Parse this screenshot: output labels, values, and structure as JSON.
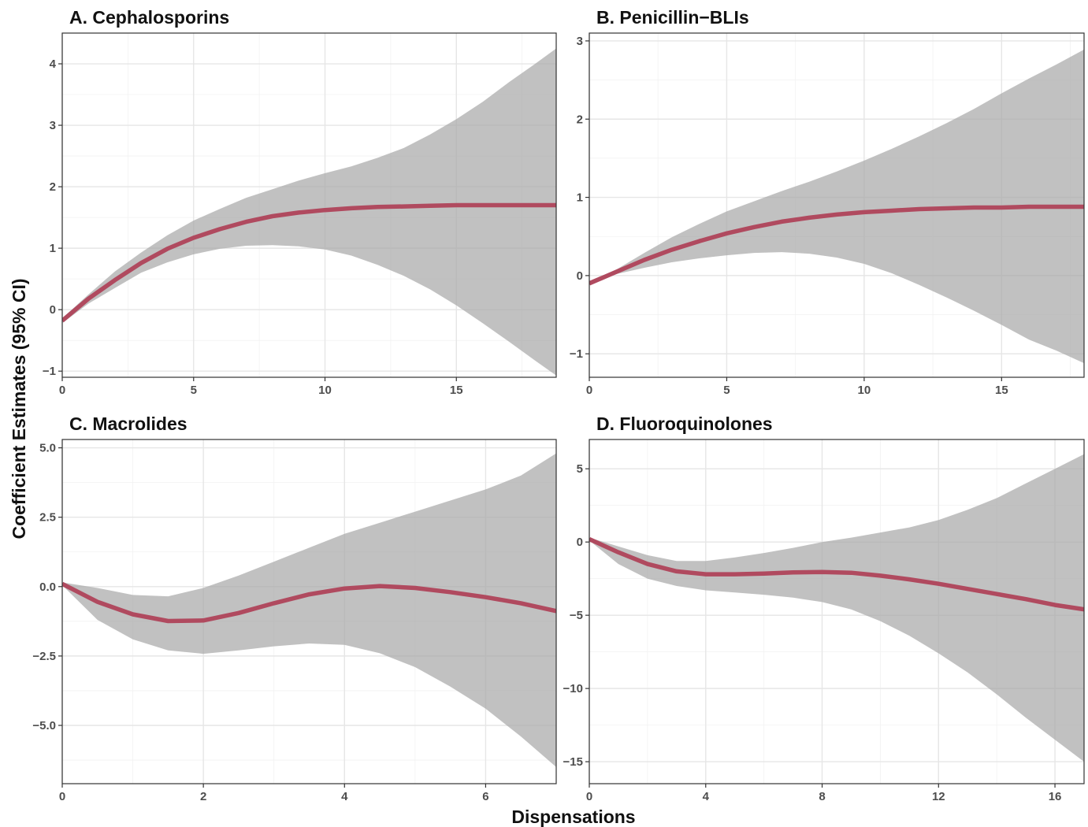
{
  "figure": {
    "ylabel": "Coefficient Estimates (95% CI)",
    "xlabel": "Dispensations"
  },
  "colors": {
    "line": "#b04a5f",
    "ribbon": "#a6a6a6",
    "background": "#ffffff"
  },
  "chart_data": [
    {
      "type": "line",
      "title": "A. Cephalosporins",
      "xlim": [
        0,
        18.8
      ],
      "ylim": [
        -1.1,
        4.5
      ],
      "xticks": [
        0,
        5,
        10,
        15
      ],
      "xticklabels": [
        "0",
        "5",
        "10",
        "15"
      ],
      "yticks": [
        -1,
        0,
        1,
        2,
        3,
        4
      ],
      "yticklabels": [
        "−1",
        "0",
        "1",
        "2",
        "3",
        "4"
      ],
      "series": [
        {
          "x": [
            0,
            1,
            2,
            3,
            4,
            5,
            6,
            7,
            8,
            9,
            10,
            11,
            12,
            13,
            14,
            15,
            16,
            17,
            18,
            18.8
          ],
          "y": [
            -0.18,
            0.18,
            0.48,
            0.76,
            0.99,
            1.17,
            1.31,
            1.43,
            1.52,
            1.58,
            1.62,
            1.65,
            1.67,
            1.68,
            1.69,
            1.7,
            1.7,
            1.7,
            1.7,
            1.7
          ],
          "lower": [
            -0.22,
            0.1,
            0.35,
            0.6,
            0.77,
            0.9,
            0.99,
            1.04,
            1.05,
            1.03,
            0.98,
            0.88,
            0.73,
            0.55,
            0.33,
            0.07,
            -0.22,
            -0.52,
            -0.83,
            -1.07
          ],
          "upper": [
            -0.14,
            0.25,
            0.62,
            0.93,
            1.21,
            1.45,
            1.64,
            1.82,
            1.96,
            2.1,
            2.22,
            2.33,
            2.47,
            2.63,
            2.85,
            3.1,
            3.38,
            3.7,
            4.0,
            4.25
          ]
        }
      ]
    },
    {
      "type": "line",
      "title": "B. Penicillin−BLIs",
      "xlim": [
        0,
        18
      ],
      "ylim": [
        -1.3,
        3.1
      ],
      "xticks": [
        0,
        5,
        10,
        15
      ],
      "xticklabels": [
        "0",
        "5",
        "10",
        "15"
      ],
      "yticks": [
        -1,
        0,
        1,
        2,
        3
      ],
      "yticklabels": [
        "−1",
        "0",
        "1",
        "2",
        "3"
      ],
      "series": [
        {
          "x": [
            0,
            1,
            2,
            3,
            4,
            5,
            6,
            7,
            8,
            9,
            10,
            11,
            12,
            13,
            14,
            15,
            16,
            17,
            18
          ],
          "y": [
            -0.1,
            0.05,
            0.2,
            0.33,
            0.44,
            0.54,
            0.62,
            0.69,
            0.74,
            0.78,
            0.81,
            0.83,
            0.85,
            0.86,
            0.87,
            0.87,
            0.88,
            0.88,
            0.88
          ],
          "lower": [
            -0.12,
            0.02,
            0.1,
            0.17,
            0.22,
            0.26,
            0.29,
            0.3,
            0.28,
            0.23,
            0.15,
            0.03,
            -0.12,
            -0.28,
            -0.45,
            -0.63,
            -0.82,
            -0.96,
            -1.12
          ],
          "upper": [
            -0.08,
            0.08,
            0.29,
            0.49,
            0.66,
            0.82,
            0.95,
            1.08,
            1.2,
            1.33,
            1.47,
            1.62,
            1.78,
            1.95,
            2.13,
            2.33,
            2.52,
            2.7,
            2.89
          ]
        }
      ]
    },
    {
      "type": "line",
      "title": "C. Macrolides",
      "xlim": [
        0,
        7
      ],
      "ylim": [
        -7.1,
        5.3
      ],
      "xticks": [
        0,
        2,
        4,
        6
      ],
      "xticklabels": [
        "0",
        "2",
        "4",
        "6"
      ],
      "yticks": [
        -5.0,
        -2.5,
        0.0,
        2.5,
        5.0
      ],
      "yticklabels": [
        "−5.0",
        "−2.5",
        "0.0",
        "2.5",
        "5.0"
      ],
      "series": [
        {
          "x": [
            0,
            0.5,
            1.0,
            1.5,
            2.0,
            2.5,
            3.0,
            3.5,
            4.0,
            4.5,
            5.0,
            5.5,
            6.0,
            6.5,
            7.0
          ],
          "y": [
            0.1,
            -0.55,
            -1.0,
            -1.24,
            -1.22,
            -0.95,
            -0.6,
            -0.28,
            -0.07,
            0.02,
            -0.05,
            -0.2,
            -0.38,
            -0.6,
            -0.88
          ],
          "lower": [
            0.05,
            -1.2,
            -1.9,
            -2.3,
            -2.42,
            -2.3,
            -2.15,
            -2.05,
            -2.1,
            -2.4,
            -2.9,
            -3.6,
            -4.4,
            -5.4,
            -6.5
          ],
          "upper": [
            0.15,
            -0.05,
            -0.3,
            -0.35,
            -0.05,
            0.4,
            0.9,
            1.4,
            1.9,
            2.3,
            2.7,
            3.1,
            3.5,
            4.0,
            4.8
          ]
        }
      ]
    },
    {
      "type": "line",
      "title": "D. Fluoroquinolones",
      "xlim": [
        0,
        17
      ],
      "ylim": [
        -16.5,
        7.0
      ],
      "xticks": [
        0,
        4,
        8,
        12,
        16
      ],
      "xticklabels": [
        "0",
        "4",
        "8",
        "12",
        "16"
      ],
      "yticks": [
        -15,
        -10,
        -5,
        0,
        5
      ],
      "yticklabels": [
        "−15",
        "−10",
        "−5",
        "0",
        "5"
      ],
      "series": [
        {
          "x": [
            0,
            1,
            2,
            3,
            4,
            5,
            6,
            7,
            8,
            9,
            10,
            11,
            12,
            13,
            14,
            15,
            16,
            17
          ],
          "y": [
            0.2,
            -0.7,
            -1.5,
            -2.0,
            -2.2,
            -2.2,
            -2.15,
            -2.08,
            -2.05,
            -2.1,
            -2.3,
            -2.55,
            -2.85,
            -3.2,
            -3.55,
            -3.9,
            -4.3,
            -4.6
          ],
          "lower": [
            0.1,
            -1.5,
            -2.5,
            -3.0,
            -3.3,
            -3.45,
            -3.6,
            -3.8,
            -4.1,
            -4.6,
            -5.4,
            -6.4,
            -7.6,
            -8.9,
            -10.4,
            -12.0,
            -13.5,
            -15.0
          ],
          "upper": [
            0.3,
            -0.3,
            -0.9,
            -1.3,
            -1.3,
            -1.05,
            -0.75,
            -0.4,
            0.0,
            0.3,
            0.65,
            1.0,
            1.5,
            2.2,
            3.0,
            4.0,
            5.0,
            6.0
          ]
        }
      ]
    }
  ]
}
